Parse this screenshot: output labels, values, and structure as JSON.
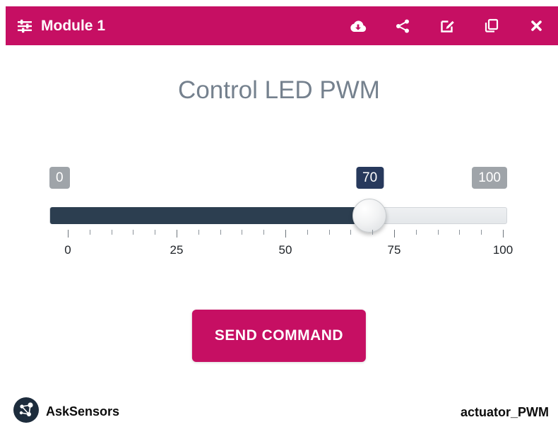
{
  "header": {
    "title": "Module 1",
    "icons": [
      "sliders",
      "cloud-download",
      "share",
      "edit",
      "copy",
      "close"
    ]
  },
  "main": {
    "title": "Control LED PWM"
  },
  "slider": {
    "min": 0,
    "max": 100,
    "value": 70,
    "min_label": "0",
    "max_label": "100",
    "value_label": "70",
    "ticks": [
      "0",
      "25",
      "50",
      "75",
      "100"
    ],
    "minor_ticks_per_segment": 5
  },
  "button": {
    "label": "SEND COMMAND"
  },
  "footer": {
    "brand": "AskSensors",
    "topic": "actuator_PWM"
  },
  "colors": {
    "accent": "#c60f63",
    "slider_fill": "#2c3e50",
    "badge_gray": "#9fa4a9",
    "badge_active": "#27395c"
  }
}
